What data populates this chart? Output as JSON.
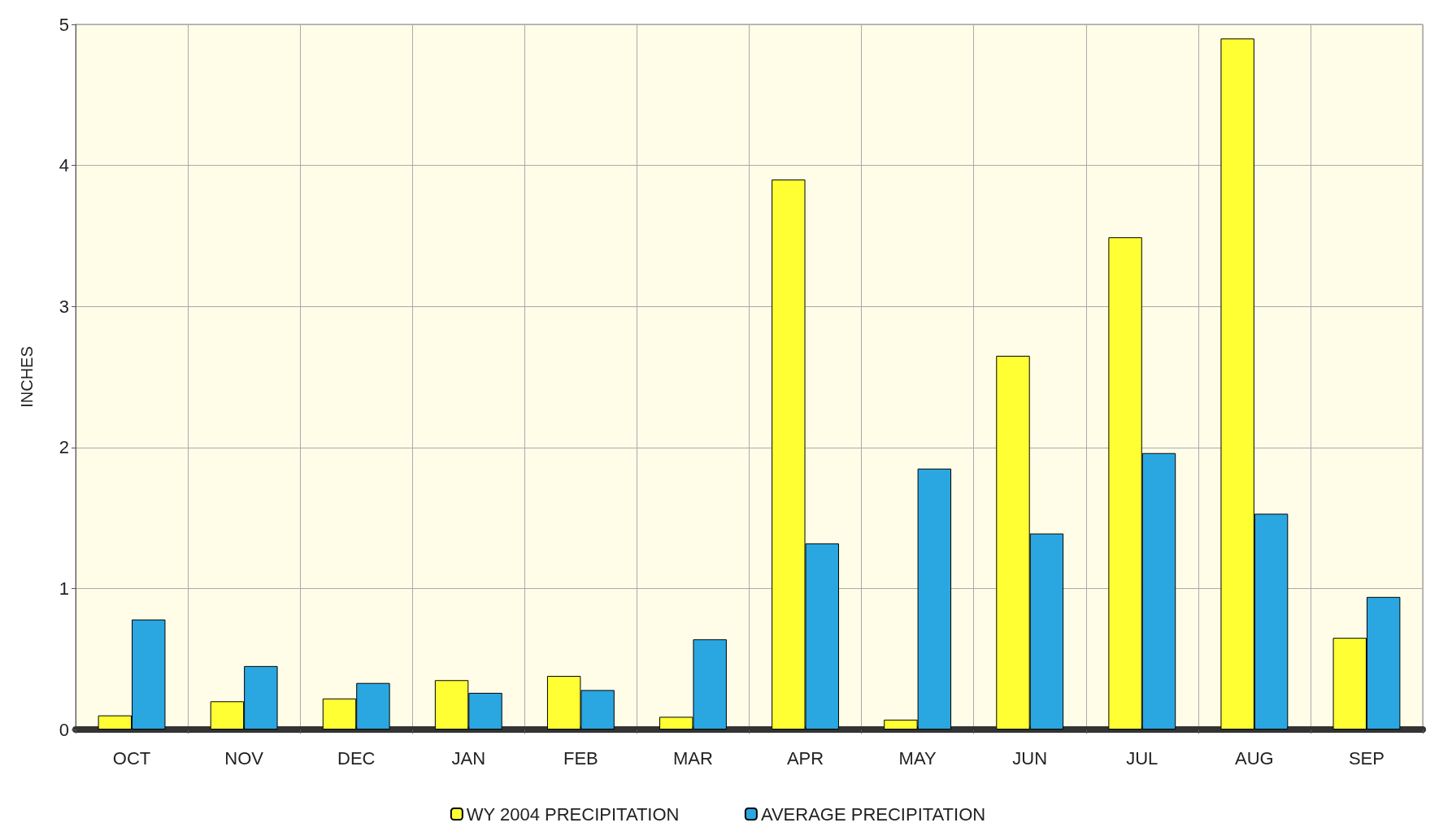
{
  "chart_data": {
    "type": "bar",
    "ylabel": "INCHES",
    "categories": [
      "OCT",
      "NOV",
      "DEC",
      "JAN",
      "FEB",
      "MAR",
      "APR",
      "MAY",
      "JUN",
      "JUL",
      "AUG",
      "SEP"
    ],
    "series": [
      {
        "name": "WY 2004 PRECIPITATION",
        "color": "#ffff33",
        "values": [
          0.1,
          0.2,
          0.22,
          0.35,
          0.38,
          0.09,
          3.9,
          0.07,
          2.65,
          3.49,
          4.9,
          0.65
        ]
      },
      {
        "name": "AVERAGE PRECIPITATION",
        "color": "#2aa7e0",
        "values": [
          0.78,
          0.45,
          0.33,
          0.26,
          0.28,
          0.64,
          1.32,
          1.85,
          1.39,
          1.96,
          1.53,
          0.94
        ]
      }
    ],
    "ylim": [
      0,
      5
    ],
    "yticks": [
      0,
      1,
      2,
      3,
      4,
      5
    ],
    "grid": true,
    "legend": "bottom"
  }
}
